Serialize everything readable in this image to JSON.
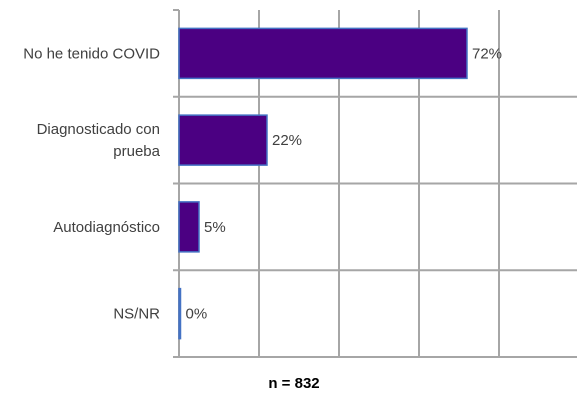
{
  "chart_data": {
    "type": "bar",
    "orientation": "horizontal",
    "categories": [
      "No he tenido COVID",
      "Diagnosticado con prueba",
      "Autodiagnóstico",
      "NS/NR"
    ],
    "category_lines": [
      [
        "No he tenido COVID"
      ],
      [
        "Diagnosticado con",
        "prueba"
      ],
      [
        "Autodiagnóstico"
      ],
      [
        "NS/NR"
      ]
    ],
    "values": [
      72,
      22,
      5,
      0
    ],
    "data_labels": [
      "72%",
      "22%",
      "5%",
      "0%"
    ],
    "xlim": [
      0,
      100
    ],
    "grid": true,
    "legend": "none",
    "note": "n = 832",
    "bar_color": "#4b0082",
    "bar_edge_color": "#4472c4",
    "grid_color": "#a6a6a6"
  }
}
